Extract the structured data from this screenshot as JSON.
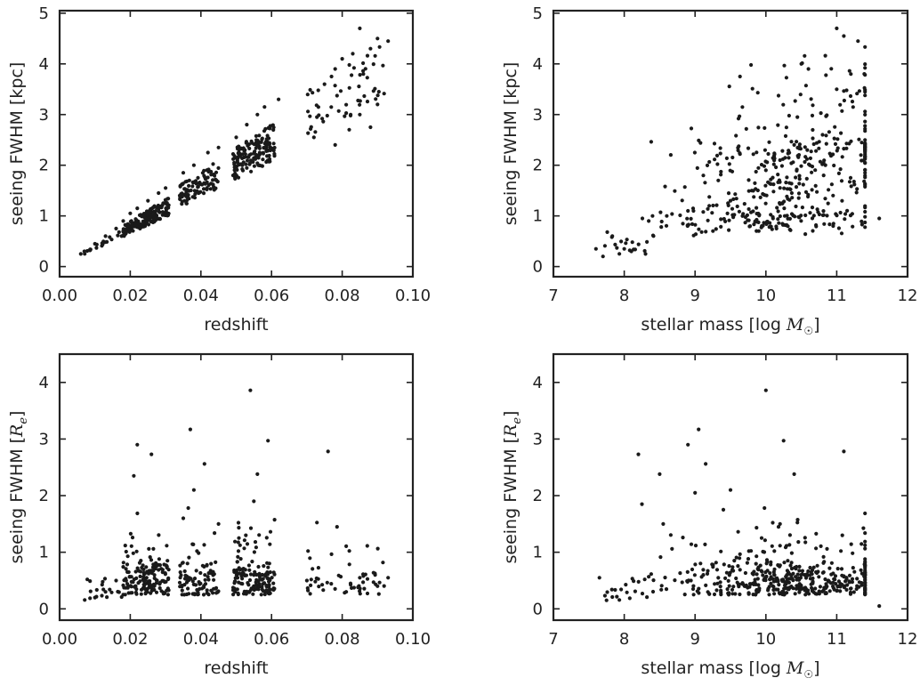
{
  "chart_data": [
    {
      "type": "scatter",
      "xlabel": "redshift",
      "ylabel": "seeing FWHM [kpc]",
      "xlim": [
        0.0,
        0.1
      ],
      "ylim": [
        -0.2,
        5.05
      ],
      "xticks": [
        "0.00",
        "0.02",
        "0.04",
        "0.06",
        "0.08",
        "0.10"
      ],
      "yticks": [
        "0",
        "1",
        "2",
        "3",
        "4",
        "5"
      ],
      "grid": false,
      "legend": "none",
      "color": "#1a1a1a",
      "points": [
        [
          0.006,
          0.25
        ],
        [
          0.007,
          0.3
        ],
        [
          0.01,
          0.45
        ],
        [
          0.013,
          0.6
        ],
        [
          0.016,
          0.75
        ],
        [
          0.018,
          0.9
        ],
        [
          0.02,
          1.05
        ],
        [
          0.022,
          1.15
        ],
        [
          0.025,
          1.3
        ],
        [
          0.028,
          1.45
        ],
        [
          0.03,
          1.55
        ],
        [
          0.035,
          1.85
        ],
        [
          0.038,
          2.0
        ],
        [
          0.042,
          2.25
        ],
        [
          0.045,
          2.35
        ],
        [
          0.05,
          2.55
        ],
        [
          0.053,
          2.8
        ],
        [
          0.056,
          3.0
        ],
        [
          0.058,
          3.15
        ],
        [
          0.062,
          3.3
        ],
        [
          0.072,
          2.55
        ],
        [
          0.075,
          3.6
        ],
        [
          0.078,
          3.9
        ],
        [
          0.08,
          4.1
        ],
        [
          0.083,
          4.2
        ],
        [
          0.085,
          4.7
        ],
        [
          0.088,
          4.3
        ],
        [
          0.09,
          4.5
        ],
        [
          0.093,
          4.45
        ],
        [
          0.085,
          3.0
        ],
        [
          0.088,
          2.75
        ],
        [
          0.09,
          3.2
        ],
        [
          0.078,
          2.4
        ],
        [
          0.082,
          2.7
        ]
      ]
    },
    {
      "type": "scatter",
      "xlabel": "stellar mass [log M☉]",
      "ylabel": "seeing FWHM [kpc]",
      "xlim": [
        7,
        12
      ],
      "ylim": [
        -0.2,
        5.05
      ],
      "xticks": [
        "7",
        "8",
        "9",
        "10",
        "11",
        "12"
      ],
      "yticks": [
        "0",
        "1",
        "2",
        "3",
        "4",
        "5"
      ],
      "grid": false,
      "legend": "none",
      "color": "#1a1a1a",
      "points": [
        [
          7.6,
          0.35
        ],
        [
          7.7,
          0.2
        ],
        [
          8.0,
          0.35
        ],
        [
          8.1,
          0.3
        ],
        [
          8.3,
          0.25
        ],
        [
          8.4,
          1.0
        ],
        [
          8.6,
          1.0
        ],
        [
          8.9,
          1.1
        ],
        [
          9.2,
          1.2
        ],
        [
          9.5,
          1.3
        ],
        [
          9.8,
          1.5
        ],
        [
          10.0,
          1.9
        ],
        [
          10.2,
          2.1
        ],
        [
          10.4,
          2.4
        ],
        [
          10.5,
          4.0
        ],
        [
          10.6,
          3.9
        ],
        [
          10.8,
          2.6
        ],
        [
          11.0,
          3.5
        ],
        [
          11.0,
          4.7
        ],
        [
          11.1,
          4.55
        ],
        [
          11.2,
          3.8
        ],
        [
          11.3,
          4.45
        ],
        [
          11.4,
          2.35
        ],
        [
          11.6,
          0.95
        ],
        [
          10.1,
          0.95
        ],
        [
          9.9,
          0.7
        ]
      ]
    },
    {
      "type": "scatter",
      "xlabel": "redshift",
      "ylabel": "seeing FWHM [Re]",
      "xlim": [
        0.0,
        0.1
      ],
      "ylim": [
        -0.2,
        4.5
      ],
      "xticks": [
        "0.00",
        "0.02",
        "0.04",
        "0.06",
        "0.08",
        "0.10"
      ],
      "yticks": [
        "0",
        "1",
        "2",
        "3",
        "4"
      ],
      "grid": false,
      "legend": "none",
      "color": "#1a1a1a",
      "points": [
        [
          0.022,
          2.9
        ],
        [
          0.026,
          2.73
        ],
        [
          0.037,
          3.17
        ],
        [
          0.041,
          2.56
        ],
        [
          0.054,
          3.86
        ],
        [
          0.059,
          2.97
        ],
        [
          0.056,
          2.38
        ],
        [
          0.076,
          2.78
        ],
        [
          0.021,
          2.35
        ],
        [
          0.038,
          2.1
        ],
        [
          0.055,
          1.9
        ],
        [
          0.035,
          1.6
        ],
        [
          0.045,
          1.5
        ],
        [
          0.01,
          0.2
        ],
        [
          0.013,
          0.3
        ],
        [
          0.016,
          0.5
        ],
        [
          0.07,
          0.5
        ],
        [
          0.085,
          0.55
        ],
        [
          0.09,
          0.4
        ],
        [
          0.093,
          0.55
        ]
      ]
    },
    {
      "type": "scatter",
      "xlabel": "stellar mass [log M☉]",
      "ylabel": "seeing FWHM [Re]",
      "xlim": [
        7,
        12
      ],
      "ylim": [
        -0.2,
        4.5
      ],
      "xticks": [
        "7",
        "8",
        "9",
        "10",
        "11",
        "12"
      ],
      "yticks": [
        "0",
        "1",
        "2",
        "3",
        "4"
      ],
      "grid": false,
      "legend": "none",
      "color": "#1a1a1a",
      "points": [
        [
          8.2,
          2.73
        ],
        [
          8.5,
          2.38
        ],
        [
          8.9,
          2.9
        ],
        [
          9.05,
          3.17
        ],
        [
          9.15,
          2.56
        ],
        [
          9.5,
          2.1
        ],
        [
          10.0,
          3.86
        ],
        [
          10.25,
          2.97
        ],
        [
          10.4,
          2.38
        ],
        [
          11.1,
          2.78
        ],
        [
          8.25,
          1.85
        ],
        [
          8.55,
          1.5
        ],
        [
          9.0,
          2.05
        ],
        [
          9.4,
          1.75
        ],
        [
          7.65,
          0.55
        ],
        [
          7.75,
          0.15
        ],
        [
          11.6,
          0.05
        ],
        [
          10.2,
          1.5
        ]
      ]
    }
  ]
}
